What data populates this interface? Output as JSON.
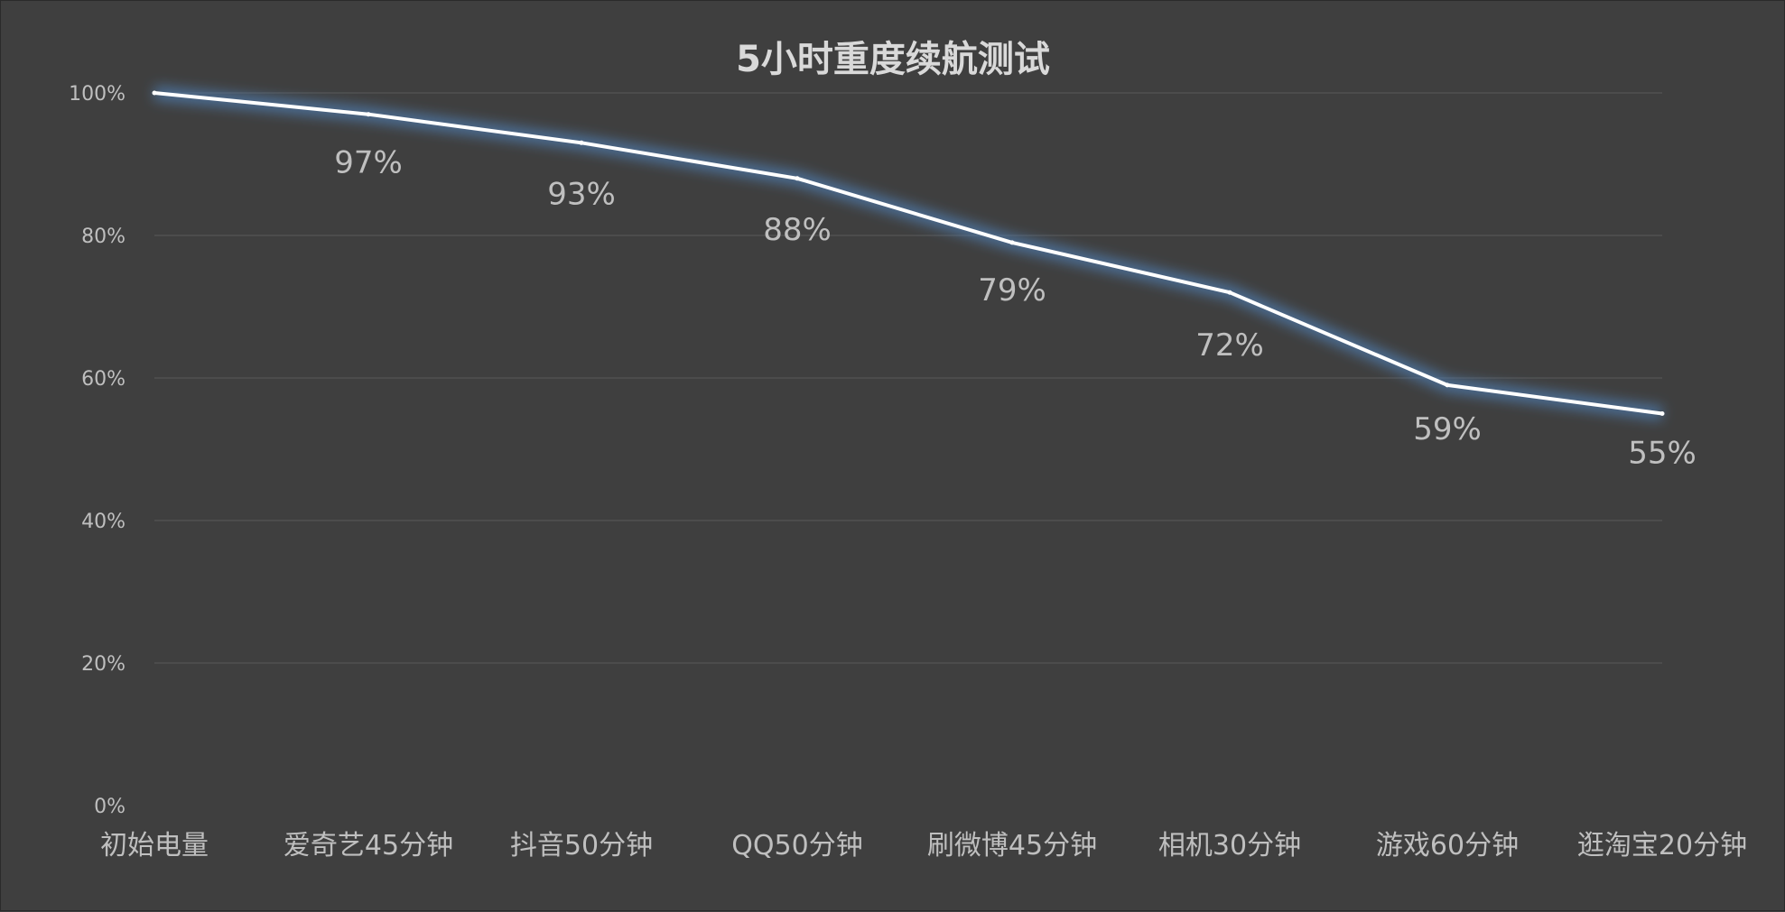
{
  "chart_data": {
    "type": "line",
    "title": "5小时重度续航测试",
    "categories": [
      "初始电量",
      "爱奇艺45分钟",
      "抖音50分钟",
      "QQ50分钟",
      "刷微博45分钟",
      "相机30分钟",
      "游戏60分钟",
      "逛淘宝20分钟"
    ],
    "series": [
      {
        "values": [
          100,
          97,
          93,
          88,
          79,
          72,
          59,
          55
        ],
        "data_labels": [
          "",
          "97%",
          "93%",
          "88%",
          "79%",
          "72%",
          "59%",
          "55%"
        ]
      }
    ],
    "ylim": [
      0,
      100
    ],
    "yticks": [
      0,
      20,
      40,
      60,
      80,
      100
    ],
    "ytick_labels": [
      "0%",
      "20%",
      "40%",
      "60%",
      "80%",
      "100%"
    ],
    "grid": true,
    "legend": "none",
    "colors": {
      "background": "#3f3f3f",
      "line": "#ffffff",
      "glow": "#4f7fb3",
      "grid": "#5a5a5a",
      "text": "#bfbfbf",
      "title": "#d9d9d9"
    }
  }
}
